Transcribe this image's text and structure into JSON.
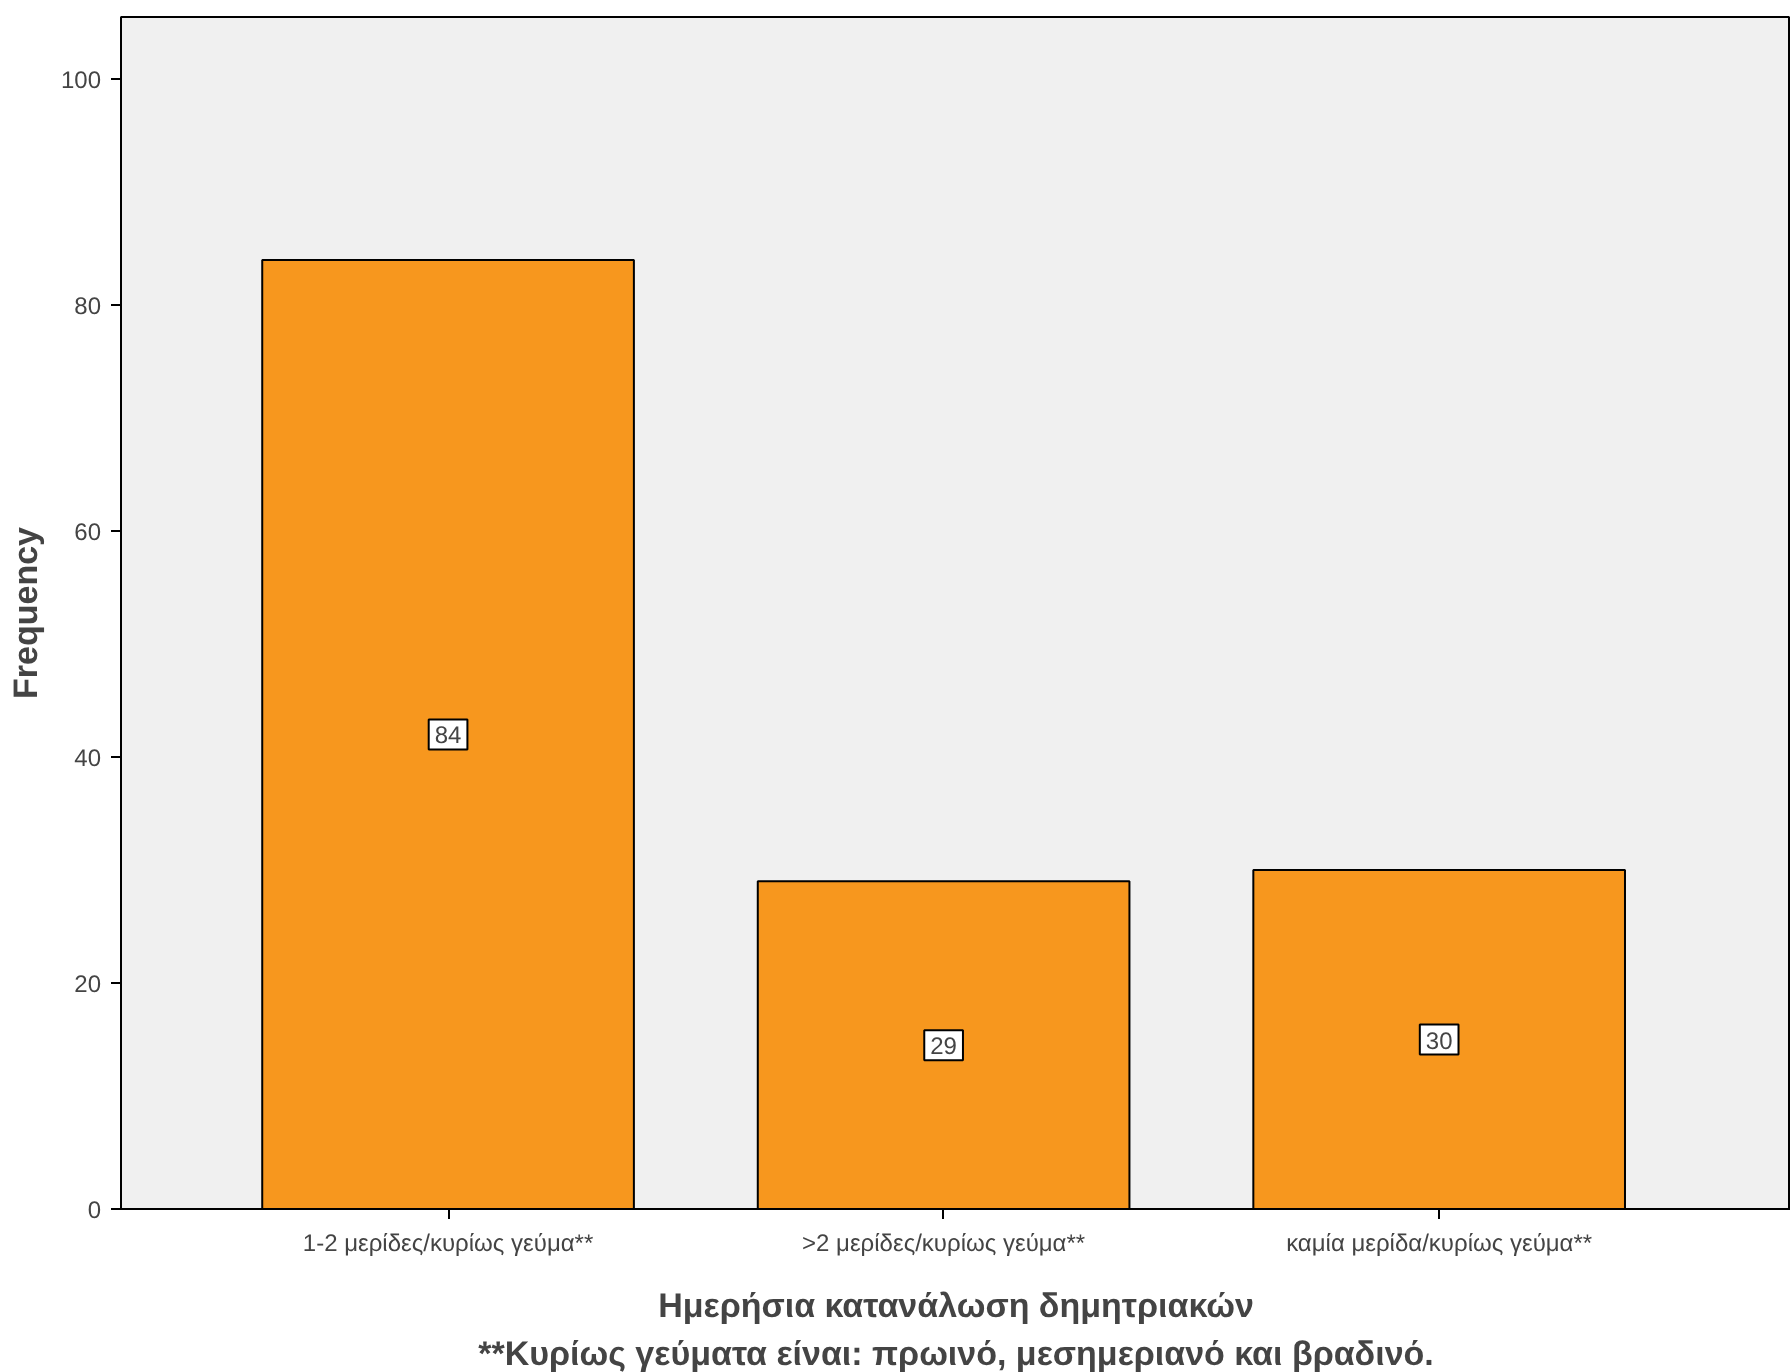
{
  "chart_data": {
    "type": "bar",
    "xlabel": "Ημερήσια κατανάλωση δημητριακών",
    "ylabel": "Frequency",
    "categories": [
      "1-2 μερίδες/κυρίως γεύμα**",
      ">2 μερίδες/κυρίως γεύμα**",
      "καμία μερίδα/κυρίως γεύμα**"
    ],
    "values": [
      84,
      29,
      30
    ],
    "color": "#f7971e",
    "data_labels": true,
    "ylim": [
      0,
      105.5
    ],
    "yticks": [
      0,
      20,
      40,
      60,
      80,
      100
    ],
    "grid": false,
    "annotations": [
      "**Κυρίως γεύματα είναι: πρωινό, μεσημεριανό και βραδινό."
    ]
  }
}
